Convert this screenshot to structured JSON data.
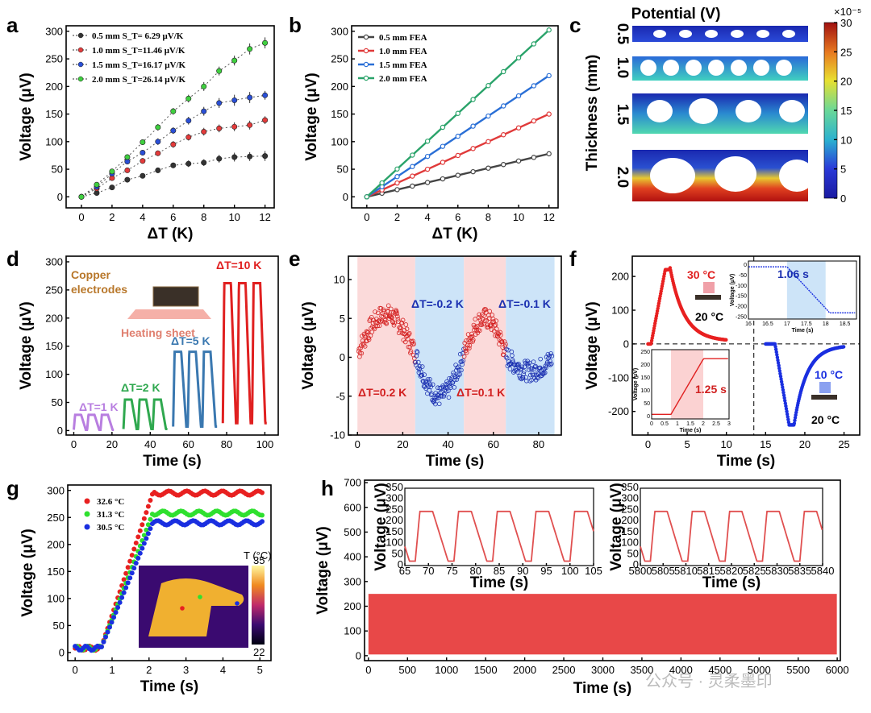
{
  "panels": {
    "a": "a",
    "b": "b",
    "c": "c",
    "d": "d",
    "e": "e",
    "f": "f",
    "g": "g",
    "h": "h"
  },
  "chart_data": [
    {
      "id": "a",
      "type": "scatter",
      "xlabel": "ΔT (K)",
      "ylabel": "Voltage (μV)",
      "xlim": [
        -1,
        12.6
      ],
      "ylim": [
        -20,
        310
      ],
      "xticks": [
        0,
        2,
        4,
        6,
        8,
        10,
        12
      ],
      "yticks": [
        0,
        50,
        100,
        150,
        200,
        250,
        300
      ],
      "x": [
        0,
        1,
        2,
        3,
        4,
        5,
        6,
        7,
        8,
        9,
        10,
        11,
        12
      ],
      "series": [
        {
          "name": "0.5 mm",
          "legend": "0.5 mm  S_T= 6.29 μV/K",
          "color": "#333333",
          "values": [
            0,
            7,
            17,
            31,
            38,
            48,
            57,
            60,
            62,
            69,
            72,
            73,
            74
          ],
          "err": [
            2,
            2,
            3,
            3,
            4,
            5,
            5,
            6,
            6,
            7,
            8,
            8,
            9
          ]
        },
        {
          "name": "1.0 mm",
          "legend": "1.0 mm  S_T=11.46 μV/K",
          "color": "#e33b3b",
          "values": [
            0,
            15,
            34,
            48,
            65,
            79,
            95,
            108,
            118,
            124,
            127,
            130,
            139
          ],
          "err": [
            2,
            3,
            4,
            4,
            5,
            5,
            6,
            6,
            7,
            7,
            8,
            8,
            7
          ]
        },
        {
          "name": "1.5 mm",
          "legend": "1.5 mm  S_T=16.17 μV/K",
          "color": "#2a4fd6",
          "values": [
            0,
            18,
            42,
            64,
            80,
            100,
            120,
            138,
            155,
            170,
            175,
            180,
            184
          ],
          "err": [
            2,
            3,
            4,
            5,
            5,
            6,
            6,
            7,
            8,
            9,
            10,
            10,
            8
          ]
        },
        {
          "name": "2.0 mm",
          "legend": "2.0 mm  S_T=26.14 μV/K",
          "color": "#3fcf3f",
          "values": [
            0,
            22,
            46,
            72,
            99,
            126,
            155,
            178,
            200,
            228,
            247,
            268,
            279
          ],
          "err": [
            2,
            3,
            4,
            5,
            5,
            6,
            6,
            7,
            8,
            8,
            9,
            10,
            10
          ]
        }
      ]
    },
    {
      "id": "b",
      "type": "line",
      "xlabel": "ΔT (K)",
      "ylabel": "Voltage (μV)",
      "xlim": [
        -1,
        12.6
      ],
      "ylim": [
        -20,
        310
      ],
      "xticks": [
        0,
        2,
        4,
        6,
        8,
        10,
        12
      ],
      "yticks": [
        0,
        50,
        100,
        150,
        200,
        250,
        300
      ],
      "series": [
        {
          "name": "0.5 mm FEA",
          "color": "#444444",
          "slope": 6.5
        },
        {
          "name": "1.0 mm FEA",
          "color": "#e03a3a",
          "slope": 12.5
        },
        {
          "name": "1.5 mm FEA",
          "color": "#2a6fd6",
          "slope": 18.3
        },
        {
          "name": "2.0 mm FEA",
          "color": "#2aa36a",
          "slope": 25.2
        }
      ]
    },
    {
      "id": "c",
      "type": "heatmap",
      "title": "Potential (V)",
      "ylabel": "Thickness (mm)",
      "rows": [
        "0.5",
        "1.0",
        "1.5",
        "2.0"
      ],
      "colorbar": {
        "min": 0,
        "max": 30,
        "ticks": [
          0,
          5,
          10,
          15,
          20,
          25,
          30
        ],
        "exponent": "×10⁻⁵"
      }
    },
    {
      "id": "d",
      "type": "line",
      "xlabel": "Time (s)",
      "ylabel": "Voltage (μV)",
      "xlim": [
        -4,
        107
      ],
      "ylim": [
        -8,
        310
      ],
      "xticks": [
        0,
        20,
        40,
        60,
        80,
        100
      ],
      "yticks": [
        0,
        50,
        100,
        150,
        200,
        250,
        300
      ],
      "segments": [
        {
          "label": "ΔT=1 K",
          "color": "#b87ee0",
          "t0": 0,
          "t1": 21,
          "peak": 28,
          "cycles": 3
        },
        {
          "label": "ΔT=2 K",
          "color": "#2fa84f",
          "t0": 26,
          "t1": 49,
          "peak": 55,
          "cycles": 3
        },
        {
          "label": "ΔT=5 K",
          "color": "#3a78b0",
          "t0": 52,
          "t1": 75,
          "peak": 140,
          "cycles": 3
        },
        {
          "label": "ΔT=10 K",
          "color": "#e02020",
          "t0": 78,
          "t1": 101,
          "peak": 262,
          "cycles": 3
        }
      ],
      "inset": {
        "label_top": "Copper electrodes",
        "label_bottom": "Heating sheet"
      }
    },
    {
      "id": "e",
      "type": "scatter",
      "xlabel": "Time (s)",
      "ylabel": "Voltage (μV)",
      "xlim": [
        -4,
        90
      ],
      "ylim": [
        -10,
        13
      ],
      "xticks": [
        0,
        20,
        40,
        60,
        80
      ],
      "yticks": [
        -10,
        -5,
        0,
        5,
        10
      ],
      "bands": [
        {
          "label": "ΔT=0.2 K",
          "from": 0,
          "to": 25.5,
          "color": "#fbdada",
          "textcolor": "#d22020"
        },
        {
          "label": "ΔT=-0.2 K",
          "from": 25.5,
          "to": 47,
          "color": "#cde4f8",
          "textcolor": "#1a2fb0"
        },
        {
          "label": "ΔT=0.1 K",
          "from": 47,
          "to": 65.5,
          "color": "#fbdada",
          "textcolor": "#d22020"
        },
        {
          "label": "ΔT=-0.1 K",
          "from": 65.5,
          "to": 87,
          "color": "#cde4f8",
          "textcolor": "#1a2fb0"
        }
      ]
    },
    {
      "id": "f",
      "type": "line",
      "xlabel": "Time (s)",
      "ylabel": "Voltage (μV)",
      "xlim": [
        -2,
        27
      ],
      "ylim": [
        -270,
        260
      ],
      "xticks": [
        0,
        5,
        10,
        15,
        20,
        25
      ],
      "yticks": [
        -200,
        -100,
        0,
        100,
        200
      ],
      "hot_label": "30 °C",
      "base_label_top": "20 °C",
      "cold_label": "10 °C",
      "base_label_bottom": "20 °C",
      "inset_fall": {
        "annotation": "1.06 s",
        "xticks": [
          16.0,
          16.5,
          17.0,
          17.5,
          18.0,
          18.5
        ],
        "yticks": [
          0,
          -50,
          -100,
          -150,
          -200,
          -250
        ],
        "xlabel": "Time (s)",
        "ylabel": "Voltage (μV)"
      },
      "inset_rise": {
        "annotation": "1.25 s",
        "xticks": [
          0.0,
          0.5,
          1.0,
          1.5,
          2.0,
          2.5,
          3.0
        ],
        "yticks": [
          0,
          50,
          100,
          150,
          200,
          250
        ],
        "xlabel": "Time (s)",
        "ylabel": "Voltage (μV)"
      }
    },
    {
      "id": "g",
      "type": "scatter",
      "xlabel": "Time (s)",
      "ylabel": "Voltage (μV)",
      "xlim": [
        -0.2,
        5.3
      ],
      "ylim": [
        -15,
        310
      ],
      "xticks": [
        0,
        1,
        2,
        3,
        4,
        5
      ],
      "yticks": [
        0,
        50,
        100,
        150,
        200,
        250,
        300
      ],
      "series": [
        {
          "name": "32.6 °C",
          "color": "#e82020",
          "plateau": 295
        },
        {
          "name": "31.3 °C",
          "color": "#2fe02f",
          "plateau": 258
        },
        {
          "name": "30.5 °C",
          "color": "#1a2fe0",
          "plateau": 240
        }
      ],
      "thermal_bar": {
        "title": "T (°C)",
        "max": "35",
        "min": "22"
      }
    },
    {
      "id": "h",
      "type": "line",
      "xlabel": "Time (s)",
      "ylabel": "Voltage (μV)",
      "xlim": [
        -50,
        6040
      ],
      "ylim": [
        -20,
        710
      ],
      "xticks": [
        0,
        500,
        1000,
        1500,
        2000,
        2500,
        3000,
        3500,
        4000,
        4500,
        5000,
        5500,
        6000
      ],
      "yticks": [
        0,
        100,
        200,
        300,
        400,
        500,
        600,
        700
      ],
      "band": {
        "min": 5,
        "max": 250,
        "color": "#e84848"
      },
      "inset_left": {
        "xticks": [
          65,
          70,
          75,
          80,
          85,
          90,
          95,
          100,
          105
        ],
        "yticks": [
          0,
          50,
          100,
          150,
          200,
          250,
          300,
          350
        ],
        "xlabel": "Time (s)",
        "ylabel": "Voltage (μV)"
      },
      "inset_right": {
        "xticks": [
          5800,
          5805,
          5810,
          5815,
          5820,
          5825,
          5830,
          5835,
          5840
        ],
        "yticks": [
          0,
          50,
          100,
          150,
          200,
          250,
          300,
          350
        ],
        "xlabel": "Time (s)",
        "ylabel": "Voltage (μV)"
      }
    }
  ],
  "watermark": "公众号 · 灵柔墨印"
}
